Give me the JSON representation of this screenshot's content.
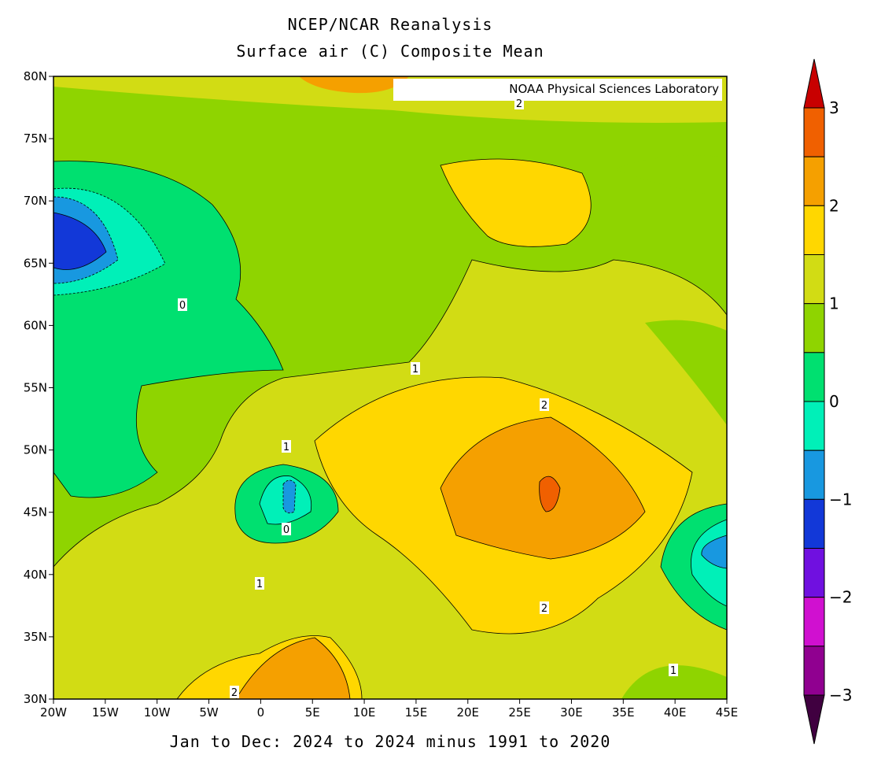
{
  "title": [
    "NCEP/NCAR Reanalysis",
    "Surface air (C) Composite Mean"
  ],
  "credit": "NOAA Physical Sciences Laboratory",
  "subtitle": "Jan to Dec: 2024 to 2024 minus 1991 to 2020",
  "lat_labels": [
    "80N",
    "75N",
    "70N",
    "65N",
    "60N",
    "55N",
    "50N",
    "45N",
    "40N",
    "35N",
    "30N"
  ],
  "lon_labels": [
    "20W",
    "15W",
    "10W",
    "5W",
    "0",
    "5E",
    "10E",
    "15E",
    "20E",
    "25E",
    "30E",
    "35E",
    "40E",
    "45E"
  ],
  "colorbar": {
    "labels": [
      "3",
      "2",
      "1",
      "0",
      "−1",
      "−2",
      "−3"
    ],
    "colors": [
      "#c80000",
      "#f06000",
      "#f5a000",
      "#ffd700",
      "#d2dc14",
      "#8fd400",
      "#00e070",
      "#00f0b8",
      "#1898e0",
      "#1238d8",
      "#7010e0",
      "#d010d0",
      "#900090",
      "#400040"
    ]
  },
  "contour_labels": [
    "2",
    "0",
    "1",
    "2",
    "1",
    "0",
    "1",
    "2",
    "1",
    "2"
  ]
}
